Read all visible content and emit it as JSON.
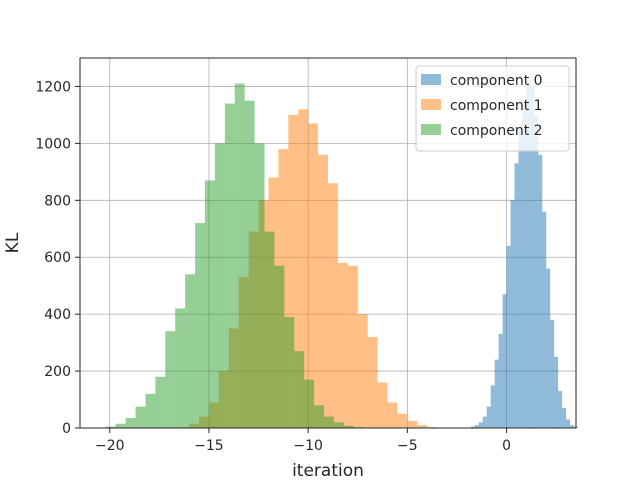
{
  "chart_data": {
    "type": "histogram",
    "title": "",
    "xlabel": "iteration",
    "ylabel": "KL",
    "xlim": [
      -21.5,
      3.5
    ],
    "ylim": [
      0,
      1300
    ],
    "xticks": [
      -20,
      -15,
      -10,
      -5,
      0
    ],
    "yticks": [
      0,
      200,
      400,
      600,
      800,
      1000,
      1200
    ],
    "grid": true,
    "legend_position": "top-right",
    "series": [
      {
        "name": "component 0",
        "color": "#1f77b4",
        "alpha": 0.5,
        "bin_start": -1.8,
        "bin_width": 0.2,
        "counts": [
          5,
          10,
          20,
          40,
          75,
          150,
          240,
          330,
          470,
          640,
          800,
          930,
          1050,
          1140,
          1220,
          1200,
          1100,
          960,
          760,
          560,
          380,
          250,
          130,
          70,
          30,
          10,
          5
        ]
      },
      {
        "name": "component 1",
        "color": "#ff7f0e",
        "alpha": 0.5,
        "bin_start": -16.5,
        "bin_width": 0.5,
        "counts": [
          3,
          15,
          40,
          90,
          200,
          350,
          530,
          690,
          800,
          880,
          980,
          1100,
          1120,
          1070,
          960,
          860,
          580,
          570,
          400,
          320,
          160,
          90,
          50,
          25,
          10,
          3
        ]
      },
      {
        "name": "component 2",
        "color": "#2ca02c",
        "alpha": 0.5,
        "bin_start": -20.2,
        "bin_width": 0.5,
        "counts": [
          5,
          15,
          35,
          75,
          120,
          180,
          340,
          420,
          540,
          720,
          870,
          1000,
          1140,
          1210,
          1150,
          1000,
          690,
          570,
          390,
          270,
          170,
          80,
          40,
          20,
          8,
          3
        ]
      }
    ]
  }
}
